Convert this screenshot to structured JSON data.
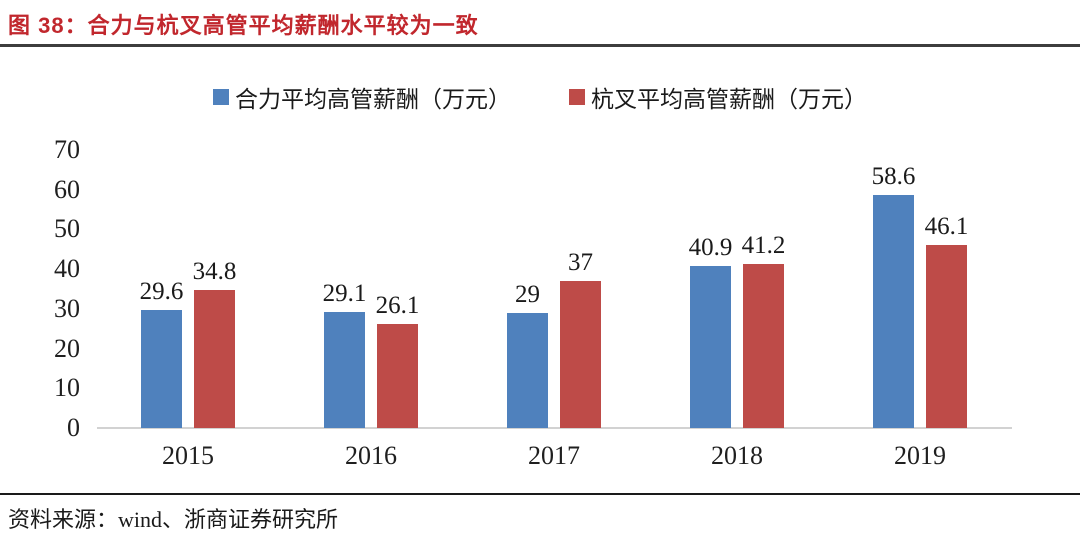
{
  "title": {
    "label": "图 38：合力与杭叉高管平均薪酬水平较为一致"
  },
  "legend": [
    {
      "label": "合力平均高管薪酬（万元）",
      "color": "#4f81bd"
    },
    {
      "label": "杭叉平均高管薪酬（万元）",
      "color": "#be4b48"
    }
  ],
  "source": {
    "label": "资料来源：wind、浙商证券研究所"
  },
  "colors": {
    "title_red": "#c1272d",
    "series_blue": "#4f81bd",
    "series_red": "#be4b48",
    "axis_line": "#d2d2d2"
  },
  "chart_data": {
    "type": "bar",
    "categories": [
      "2015",
      "2016",
      "2017",
      "2018",
      "2019"
    ],
    "series": [
      {
        "name": "合力平均高管薪酬（万元）",
        "color": "#4f81bd",
        "values": [
          29.6,
          29.1,
          29,
          40.9,
          58.6
        ]
      },
      {
        "name": "杭叉平均高管薪酬（万元）",
        "color": "#be4b48",
        "values": [
          34.8,
          26.1,
          37,
          41.2,
          46.1
        ]
      }
    ],
    "title": "合力与杭叉高管平均薪酬水平较为一致",
    "xlabel": "",
    "ylabel": "",
    "ylim": [
      0,
      70
    ],
    "ytick_step": 10,
    "yticks": [
      0,
      10,
      20,
      30,
      40,
      50,
      60,
      70
    ],
    "grid": false,
    "legend_position": "top",
    "data_labels": true
  }
}
